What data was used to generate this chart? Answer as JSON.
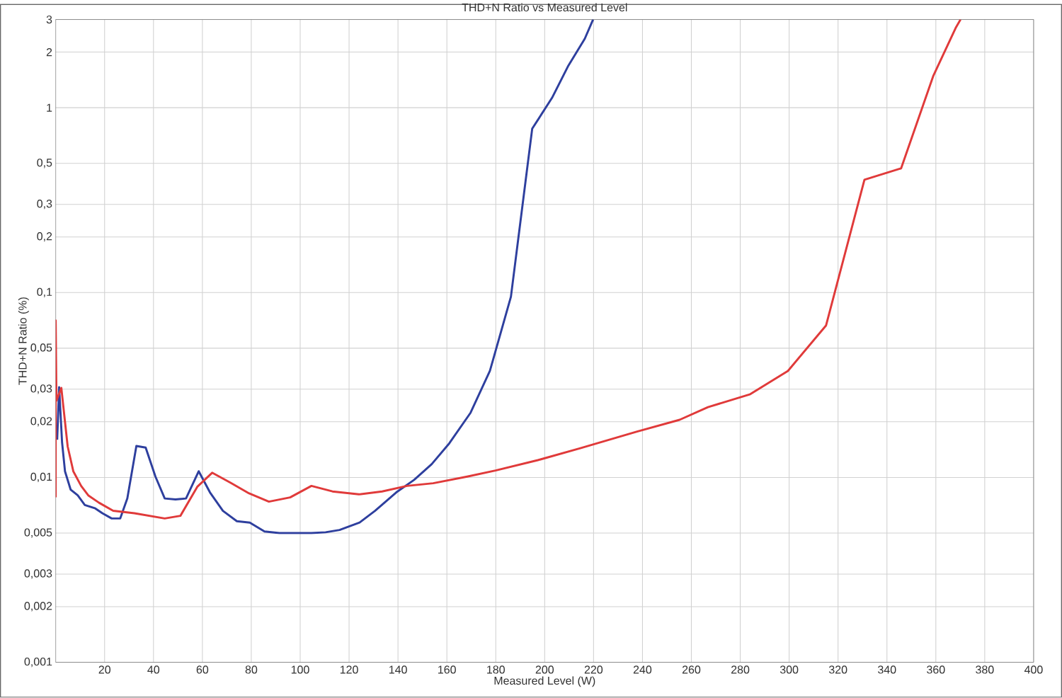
{
  "chart_data": {
    "type": "line",
    "title": "THD+N Ratio vs Measured Level",
    "xlabel": "Measured Level (W)",
    "ylabel": "THD+N Ratio (%)",
    "xlim": [
      0,
      400
    ],
    "xticks": [
      20,
      40,
      60,
      80,
      100,
      120,
      140,
      160,
      180,
      200,
      220,
      240,
      260,
      280,
      300,
      320,
      340,
      360,
      380,
      400
    ],
    "ylim": [
      0.001,
      3
    ],
    "log": "y",
    "grid": true,
    "marker": "none",
    "line_style": "solid",
    "yticks": [
      {
        "value": 0.001,
        "label": "0,001"
      },
      {
        "value": 0.002,
        "label": "0,002"
      },
      {
        "value": 0.003,
        "label": "0,003"
      },
      {
        "value": 0.005,
        "label": "0,005"
      },
      {
        "value": 0.01,
        "label": "0,01"
      },
      {
        "value": 0.02,
        "label": "0,02"
      },
      {
        "value": 0.03,
        "label": "0,03"
      },
      {
        "value": 0.05,
        "label": "0,05"
      },
      {
        "value": 0.1,
        "label": "0,1"
      },
      {
        "value": 0.2,
        "label": "0,2"
      },
      {
        "value": 0.3,
        "label": "0,3"
      },
      {
        "value": 0.5,
        "label": "0,5"
      },
      {
        "value": 1,
        "label": "1"
      },
      {
        "value": 2,
        "label": "2"
      },
      {
        "value": 3,
        "label": "3"
      }
    ],
    "series": [
      {
        "color": "#2e3f9e",
        "x": [
          0.6,
          1.4,
          2.6,
          3.8,
          6.1,
          9.0,
          11.9,
          16.2,
          19.1,
          22.9,
          26.4,
          29.3,
          33,
          36.8,
          40.8,
          44.6,
          49,
          53.3,
          58.5,
          63.1,
          68.4,
          74.1,
          79.4,
          85.4,
          91.5,
          104.6,
          110.4,
          116.1,
          124.3,
          130.6,
          139.3,
          146.6,
          153.8,
          161,
          169.7,
          177.6,
          186.2,
          194.9,
          203,
          209.7,
          216.4,
          219.8
        ],
        "values": [
          0.016,
          0.0308,
          0.0155,
          0.0108,
          0.0086,
          0.008,
          0.0071,
          0.0068,
          0.0064,
          0.006,
          0.006,
          0.0077,
          0.0148,
          0.0145,
          0.0101,
          0.0077,
          0.0076,
          0.0077,
          0.0108,
          0.0083,
          0.0066,
          0.0058,
          0.0057,
          0.0051,
          0.005,
          0.005,
          0.00505,
          0.0052,
          0.0057,
          0.0066,
          0.0083,
          0.0097,
          0.0118,
          0.0153,
          0.0224,
          0.0377,
          0.095,
          0.77,
          1.13,
          1.69,
          2.36,
          3
        ]
      },
      {
        "color": "#e03a3a",
        "x": [
          0,
          0,
          0.3,
          2.3,
          4.9,
          7.2,
          10.4,
          13.3,
          17.7,
          23.5,
          32.2,
          44.6,
          51,
          57.9,
          64,
          71.3,
          79.1,
          87.2,
          95.9,
          104.6,
          113.2,
          124,
          133.5,
          143.7,
          154.4,
          168.3,
          179.9,
          197.2,
          214.6,
          237.8,
          255.2,
          266.8,
          284.1,
          299.5,
          315.1,
          330.8,
          345.8,
          358.9,
          368.1,
          370.1
        ],
        "values": [
          0.0078,
          0.0706,
          0.026,
          0.0305,
          0.0147,
          0.0108,
          0.009,
          0.008,
          0.0073,
          0.0066,
          0.0064,
          0.006,
          0.0062,
          0.0089,
          0.0106,
          0.0094,
          0.0082,
          0.0074,
          0.0078,
          0.009,
          0.0084,
          0.0081,
          0.0084,
          0.009,
          0.0093,
          0.0101,
          0.0109,
          0.0124,
          0.0144,
          0.0177,
          0.0205,
          0.024,
          0.0282,
          0.0377,
          0.0664,
          0.408,
          0.47,
          1.48,
          2.7,
          3
        ]
      }
    ]
  }
}
